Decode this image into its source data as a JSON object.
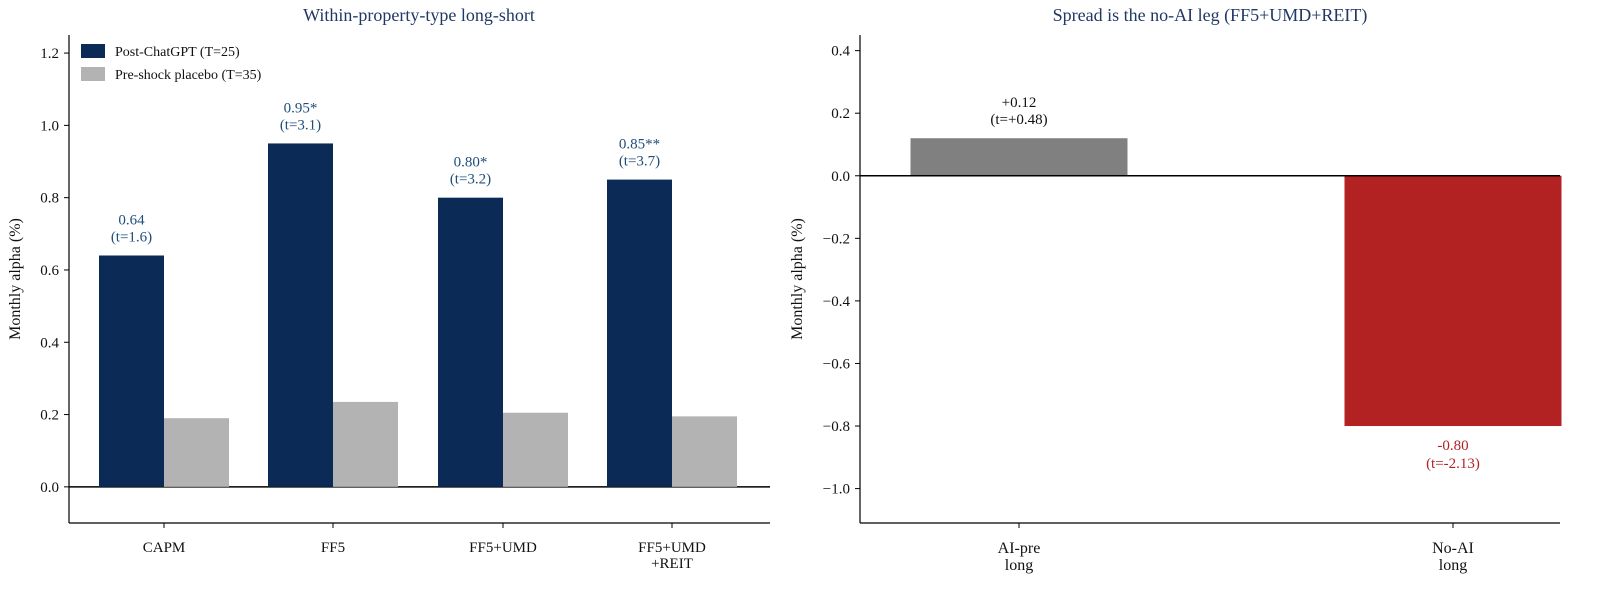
{
  "chart_data": [
    {
      "type": "bar",
      "title": "Within-property-type long-short",
      "xlabel": "",
      "ylabel": "Monthly alpha (%)",
      "ylim": [
        -0.1,
        1.25
      ],
      "yticks": [
        "0.0",
        "0.2",
        "0.4",
        "0.6",
        "0.8",
        "1.0",
        "1.2"
      ],
      "ytick_values": [
        0.0,
        0.2,
        0.4,
        0.6,
        0.8,
        1.0,
        1.2
      ],
      "categories": [
        [
          "CAPM"
        ],
        [
          "FF5"
        ],
        [
          "FF5+UMD"
        ],
        [
          "FF5+UMD",
          "+REIT"
        ]
      ],
      "series": [
        {
          "name": "Post-ChatGPT (T=25)",
          "color": "#0b2a55",
          "values": [
            0.64,
            0.95,
            0.8,
            0.85
          ],
          "labels": [
            [
              "0.64",
              "(t=1.6)"
            ],
            [
              "0.95*",
              "(t=3.1)"
            ],
            [
              "0.80*",
              "(t=3.2)"
            ],
            [
              "0.85**",
              "(t=3.7)"
            ]
          ],
          "label_color": "#1f4e79"
        },
        {
          "name": "Pre-shock placebo (T=35)",
          "color": "#b3b3b3",
          "values": [
            0.19,
            0.235,
            0.205,
            0.195
          ]
        }
      ],
      "legend": "top-left",
      "grid": false
    },
    {
      "type": "bar",
      "title": "Spread is the no-AI leg (FF5+UMD+REIT)",
      "xlabel": "",
      "ylabel": "Monthly alpha (%)",
      "ylim": [
        -1.11,
        0.45
      ],
      "yticks": [
        "−1.0",
        "−0.8",
        "−0.6",
        "−0.4",
        "−0.2",
        "0.0",
        "0.2",
        "0.4"
      ],
      "ytick_values": [
        -1.0,
        -0.8,
        -0.6,
        -0.4,
        -0.2,
        0.0,
        0.2,
        0.4
      ],
      "categories": [
        [
          "AI-pre",
          "long"
        ],
        [
          "No-AI",
          "long"
        ]
      ],
      "values": [
        0.12,
        -0.8
      ],
      "colors": [
        "#808080",
        "#b22222"
      ],
      "labels": [
        [
          "+0.12",
          "(t=+0.48)"
        ],
        [
          "-0.80",
          "(t=-2.13)"
        ]
      ],
      "label_colors": [
        "#111111",
        "#b22222"
      ],
      "grid": false
    }
  ],
  "style": {
    "title_color": "#1f3864",
    "axis_color": "#000000"
  }
}
